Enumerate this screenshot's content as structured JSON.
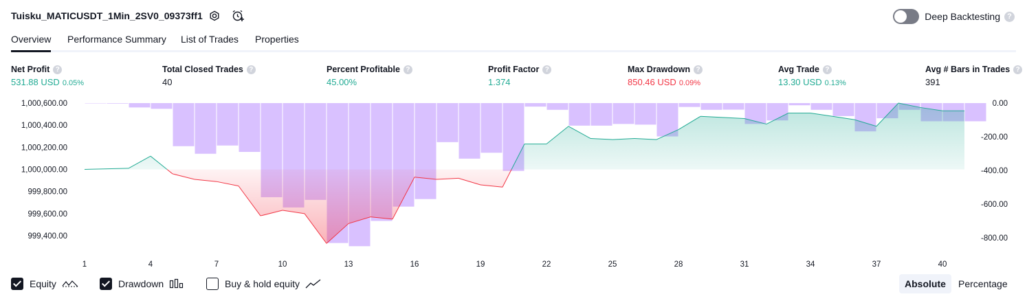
{
  "header": {
    "strategy_name": "Tuisku_MATICUSDT_1Min_2SV0_09373ff1",
    "settings_icon": "gear-icon",
    "add_alert_icon": "alarm-plus-icon",
    "deep_backtesting_label": "Deep Backtesting",
    "deep_backtesting_on": false,
    "help": "?"
  },
  "tabs": [
    {
      "label": "Overview",
      "active": true
    },
    {
      "label": "Performance Summary",
      "active": false
    },
    {
      "label": "List of Trades",
      "active": false
    },
    {
      "label": "Properties",
      "active": false
    }
  ],
  "metrics": [
    {
      "label": "Net Profit",
      "value": "531.88 USD",
      "pct": "0.05%",
      "color": "#22ab94"
    },
    {
      "label": "Total Closed Trades",
      "value": "40",
      "pct": "",
      "color": "#131722"
    },
    {
      "label": "Percent Profitable",
      "value": "45.00%",
      "pct": "",
      "color": "#22ab94"
    },
    {
      "label": "Profit Factor",
      "value": "1.374",
      "pct": "",
      "color": "#22ab94"
    },
    {
      "label": "Max Drawdown",
      "value": "850.46 USD",
      "pct": "0.09%",
      "color": "#f23645"
    },
    {
      "label": "Avg Trade",
      "value": "13.30 USD",
      "pct": "0.13%",
      "color": "#22ab94"
    },
    {
      "label": "Avg # Bars in Trades",
      "value": "391",
      "pct": "",
      "color": "#131722"
    }
  ],
  "chart_data": {
    "type": "line",
    "x_ticks": [
      "1",
      "4",
      "7",
      "10",
      "13",
      "16",
      "19",
      "22",
      "25",
      "28",
      "31",
      "34",
      "37",
      "40"
    ],
    "left_axis_ticks": [
      "1,000,600.00",
      "1,000,400.00",
      "1,000,200.00",
      "1,000,000.00",
      "999,800.00",
      "999,600.00",
      "999,400.00"
    ],
    "right_axis_ticks": [
      "0.00",
      "-200.00",
      "-400.00",
      "-600.00",
      "-800.00"
    ],
    "equity_baseline": 1000000,
    "series": [
      {
        "name": "Equity",
        "axis": "left",
        "x": [
          1,
          3,
          4,
          5,
          6,
          7,
          8,
          9,
          10,
          11,
          12,
          13,
          14,
          15,
          16,
          17,
          18,
          19,
          20,
          21,
          22,
          23,
          24,
          25,
          26,
          27,
          28,
          29,
          30,
          31,
          32,
          33,
          34,
          35,
          36,
          37,
          38,
          39,
          40,
          41
        ],
        "values": [
          1000000,
          1000010,
          1000120,
          999960,
          999910,
          999890,
          999850,
          999580,
          999630,
          999600,
          999330,
          999510,
          999570,
          999550,
          999930,
          999910,
          999920,
          999860,
          999840,
          1000230,
          1000230,
          1000390,
          1000280,
          1000270,
          1000280,
          1000270,
          1000360,
          1000480,
          1000470,
          1000460,
          1000410,
          1000510,
          1000510,
          1000480,
          1000450,
          1000390,
          1000600,
          1000560,
          1000530,
          1000530
        ]
      },
      {
        "name": "Drawdown",
        "axis": "right",
        "x": [
          1,
          2,
          3,
          4,
          5,
          6,
          7,
          8,
          9,
          10,
          11,
          12,
          13,
          14,
          15,
          16,
          17,
          18,
          19,
          20,
          21,
          22,
          23,
          24,
          25,
          26,
          27,
          28,
          29,
          30,
          31,
          32,
          33,
          34,
          35,
          36,
          37,
          38,
          39,
          40,
          41
        ],
        "values": [
          0,
          -3,
          -26,
          -34,
          -256,
          -301,
          -252,
          -290,
          -559,
          -620,
          -575,
          -831,
          -850,
          -700,
          -615,
          -570,
          -232,
          -330,
          -295,
          -403,
          -21,
          -40,
          -134,
          -134,
          -124,
          -128,
          -198,
          -23,
          -40,
          -39,
          -124,
          -103,
          -13,
          -40,
          -77,
          -168,
          -90,
          -40,
          -108,
          -108,
          -108
        ]
      }
    ],
    "ylim_left": [
      999300,
      1000650
    ],
    "ylim_right": [
      -875,
      0
    ],
    "grid": false
  },
  "legend": {
    "equity_label": "Equity",
    "drawdown_label": "Drawdown",
    "buy_hold_label": "Buy & hold equity",
    "equity_checked": true,
    "drawdown_checked": true,
    "buy_hold_checked": false
  },
  "mode": {
    "absolute_label": "Absolute",
    "percentage_label": "Percentage",
    "selected": "Absolute"
  },
  "colors": {
    "profit": "#22ab94",
    "loss": "#f23645",
    "drawdown_bar": "#c9a6ff",
    "equity_line_up": "#22ab94",
    "equity_line_down": "#f23645"
  }
}
